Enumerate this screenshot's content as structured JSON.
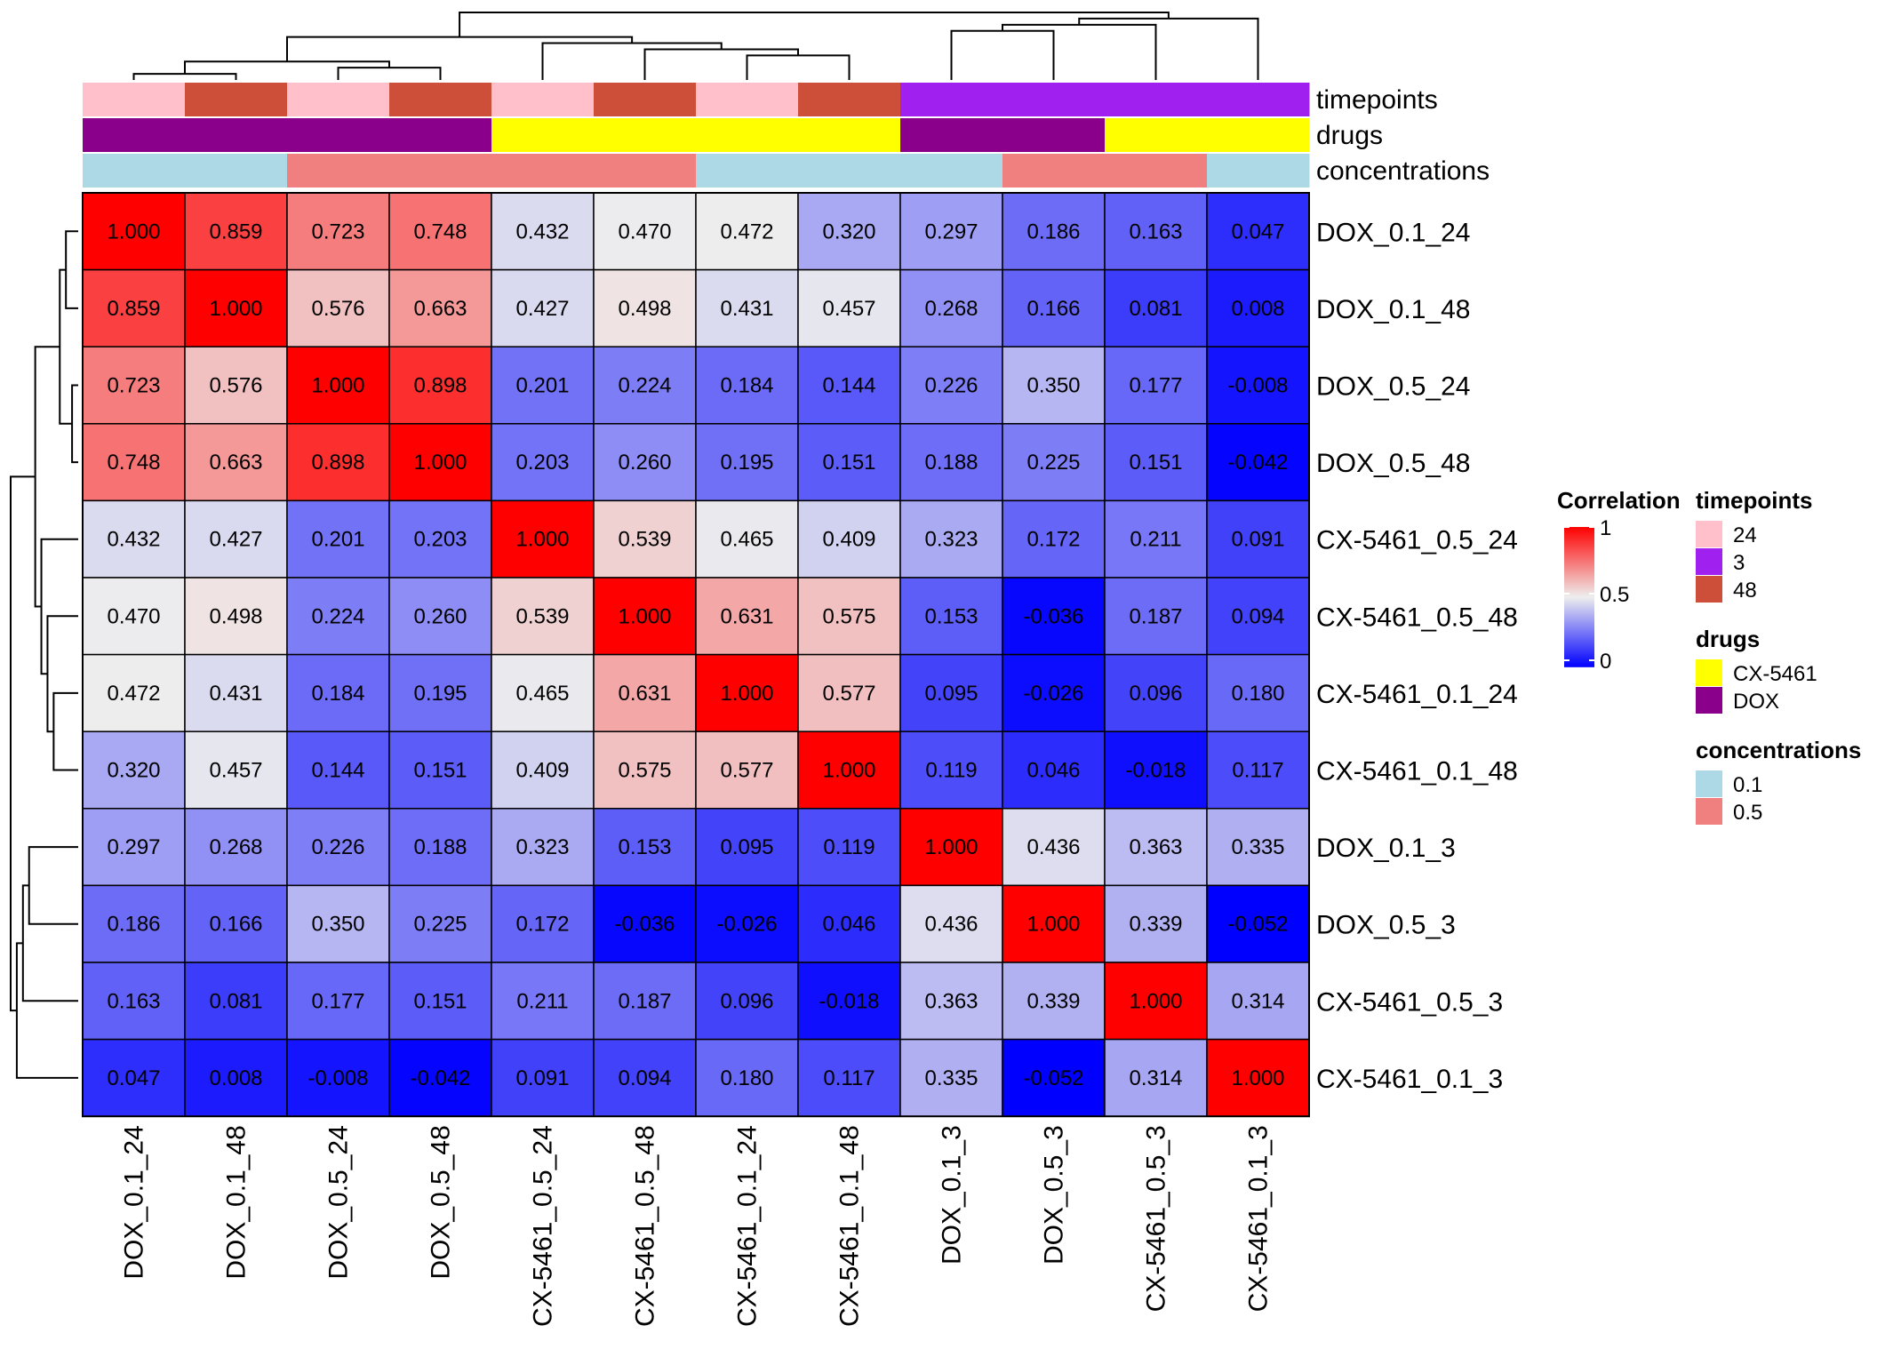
{
  "chart_data": {
    "type": "heatmap",
    "title": "",
    "samples": [
      "DOX_0.1_24",
      "DOX_0.1_48",
      "DOX_0.5_24",
      "DOX_0.5_48",
      "CX-5461_0.5_24",
      "CX-5461_0.5_48",
      "CX-5461_0.1_24",
      "CX-5461_0.1_48",
      "DOX_0.1_3",
      "DOX_0.5_3",
      "CX-5461_0.5_3",
      "CX-5461_0.1_3"
    ],
    "matrix": [
      [
        1.0,
        0.859,
        0.723,
        0.748,
        0.432,
        0.47,
        0.472,
        0.32,
        0.297,
        0.186,
        0.163,
        0.047
      ],
      [
        0.859,
        1.0,
        0.576,
        0.663,
        0.427,
        0.498,
        0.431,
        0.457,
        0.268,
        0.166,
        0.081,
        0.008
      ],
      [
        0.723,
        0.576,
        1.0,
        0.898,
        0.201,
        0.224,
        0.184,
        0.144,
        0.226,
        0.35,
        0.177,
        -0.008
      ],
      [
        0.748,
        0.663,
        0.898,
        1.0,
        0.203,
        0.26,
        0.195,
        0.151,
        0.188,
        0.225,
        0.151,
        -0.042
      ],
      [
        0.432,
        0.427,
        0.201,
        0.203,
        1.0,
        0.539,
        0.465,
        0.409,
        0.323,
        0.172,
        0.211,
        0.091
      ],
      [
        0.47,
        0.498,
        0.224,
        0.26,
        0.539,
        1.0,
        0.631,
        0.575,
        0.153,
        -0.036,
        0.187,
        0.094
      ],
      [
        0.472,
        0.431,
        0.184,
        0.195,
        0.465,
        0.631,
        1.0,
        0.577,
        0.095,
        -0.026,
        0.096,
        0.18
      ],
      [
        0.32,
        0.457,
        0.144,
        0.151,
        0.409,
        0.575,
        0.577,
        1.0,
        0.119,
        0.046,
        -0.018,
        0.117
      ],
      [
        0.297,
        0.268,
        0.226,
        0.188,
        0.323,
        0.153,
        0.095,
        0.119,
        1.0,
        0.436,
        0.363,
        0.335
      ],
      [
        0.186,
        0.166,
        0.35,
        0.225,
        0.172,
        -0.036,
        -0.026,
        0.046,
        0.436,
        1.0,
        0.339,
        -0.052
      ],
      [
        0.163,
        0.081,
        0.177,
        0.151,
        0.211,
        0.187,
        0.096,
        -0.018,
        0.363,
        0.339,
        1.0,
        0.314
      ],
      [
        0.047,
        0.008,
        -0.008,
        -0.042,
        0.091,
        0.094,
        0.18,
        0.117,
        0.335,
        -0.052,
        0.314,
        1.0
      ]
    ],
    "annotations": {
      "timepoints": {
        "title": "timepoints",
        "values": [
          "24",
          "48",
          "24",
          "48",
          "24",
          "48",
          "24",
          "48",
          "3",
          "3",
          "3",
          "3"
        ]
      },
      "drugs": {
        "title": "drugs",
        "values": [
          "DOX",
          "DOX",
          "DOX",
          "DOX",
          "CX-5461",
          "CX-5461",
          "CX-5461",
          "CX-5461",
          "DOX",
          "DOX",
          "CX-5461",
          "CX-5461"
        ]
      },
      "concentrations": {
        "title": "concentrations",
        "values": [
          "0.1",
          "0.1",
          "0.5",
          "0.5",
          "0.5",
          "0.5",
          "0.1",
          "0.1",
          "0.1",
          "0.5",
          "0.5",
          "0.1"
        ]
      }
    },
    "annotation_colors": {
      "timepoints": {
        "24": "#ffc0cb",
        "3": "#a020f0",
        "48": "#cd4f39"
      },
      "drugs": {
        "CX-5461": "#ffff00",
        "DOX": "#8b008b"
      },
      "concentrations": {
        "0.1": "#add8e6",
        "0.5": "#f08080"
      }
    },
    "color_scale": {
      "title": "Correlation",
      "stops": [
        {
          "value": -0.052,
          "color": "#0000ff"
        },
        {
          "value": 0.474,
          "color": "#eeeeee"
        },
        {
          "value": 1.0,
          "color": "#ff0000"
        }
      ],
      "ticks": [
        "1",
        "0.5",
        "0"
      ],
      "tick_values": [
        1,
        0.5,
        0
      ]
    },
    "legend": {
      "position": "right",
      "timepoints": {
        "title": "timepoints",
        "items": [
          "24",
          "3",
          "48"
        ]
      },
      "drugs": {
        "title": "drugs",
        "items": [
          "CX-5461",
          "DOX"
        ]
      },
      "concentrations": {
        "title": "concentrations",
        "items": [
          "0.1",
          "0.5"
        ]
      }
    },
    "col_dendrogram_merges": [
      [
        0,
        1
      ],
      [
        2,
        3
      ],
      [
        0,
        2
      ],
      [
        6,
        7
      ],
      [
        5,
        6
      ],
      [
        4,
        5
      ],
      [
        0,
        4
      ],
      [
        8,
        9
      ],
      [
        8,
        10
      ],
      [
        8,
        11
      ],
      [
        0,
        8
      ]
    ],
    "row_dendrogram_merges": [
      [
        2,
        3
      ],
      [
        0,
        1
      ],
      [
        0,
        2
      ],
      [
        6,
        7
      ],
      [
        5,
        6
      ],
      [
        4,
        5
      ],
      [
        0,
        4
      ],
      [
        8,
        9
      ],
      [
        8,
        10
      ],
      [
        8,
        11
      ],
      [
        0,
        8
      ]
    ]
  }
}
